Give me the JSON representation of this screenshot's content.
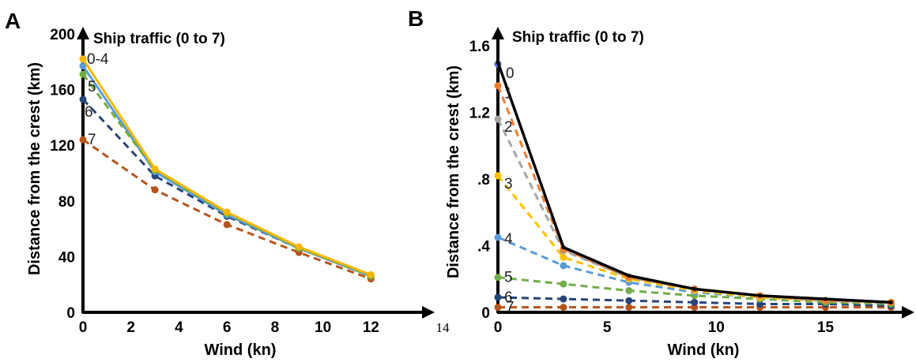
{
  "chart_data": [
    {
      "panel": "A",
      "type": "line",
      "legend_title": "Ship traffic (0 to 7)",
      "xlabel": "Wind (kn)",
      "ylabel": "Distance from the crest (km)",
      "xlim": [
        0,
        14
      ],
      "ylim": [
        0,
        200
      ],
      "xticks": [
        0,
        2,
        4,
        6,
        8,
        10,
        12
      ],
      "xtick_labels": [
        "0",
        "2",
        "4",
        "6",
        "8",
        "10",
        "12"
      ],
      "extra_tick_label": "14",
      "yticks": [
        0,
        40,
        80,
        120,
        160,
        200
      ],
      "ytick_labels": [
        "0",
        "40",
        "80",
        "120",
        "160",
        "200"
      ],
      "series": [
        {
          "name": "0-4",
          "color": "#f5b800",
          "dash": false,
          "x": [
            0,
            3,
            6,
            9,
            12
          ],
          "y": [
            182,
            103,
            72,
            47,
            27
          ]
        },
        {
          "name": "5",
          "color": "#70ad47",
          "dash": true,
          "x": [
            0,
            3,
            6,
            9,
            12
          ],
          "y": [
            171,
            102,
            71,
            46,
            26
          ]
        },
        {
          "name": "",
          "color": "#5b9bd5",
          "dash": false,
          "x": [
            0,
            3,
            6,
            9,
            12
          ],
          "y": [
            177,
            101,
            70,
            46,
            26
          ]
        },
        {
          "name": "6",
          "color": "#264478",
          "dash": true,
          "x": [
            0,
            3,
            6,
            9,
            12
          ],
          "y": [
            153,
            98,
            69,
            46,
            26
          ]
        },
        {
          "name": "7",
          "color": "#b5541c",
          "dash": true,
          "x": [
            0,
            3,
            6,
            9,
            12
          ],
          "y": [
            124,
            88,
            63,
            43,
            24
          ]
        }
      ]
    },
    {
      "panel": "B",
      "type": "line",
      "legend_title": "Ship traffic (0 to 7)",
      "xlabel": "Wind (kn)",
      "ylabel": "Distance from the crest (km)",
      "xlim": [
        0,
        19
      ],
      "ylim": [
        0,
        1.6
      ],
      "xticks": [
        0,
        5,
        10,
        15
      ],
      "xtick_labels": [
        "0",
        "5",
        "10",
        "15"
      ],
      "yticks": [
        0,
        0.4,
        0.8,
        1.2,
        1.6
      ],
      "ytick_labels": [
        "0",
        ".4",
        ".8",
        "1.2",
        "1.6"
      ],
      "series": [
        {
          "name": "0",
          "color": "#000000",
          "dash": false,
          "x": [
            0,
            3,
            6,
            9,
            12,
            15,
            18
          ],
          "y": [
            1.5,
            0.39,
            0.22,
            0.14,
            0.1,
            0.08,
            0.06
          ]
        },
        {
          "name": "",
          "color": "#4472c4",
          "dash": false,
          "x": [
            0
          ],
          "y": [
            1.49
          ]
        },
        {
          "name": "1",
          "color": "#ed7d31",
          "dash": true,
          "x": [
            0,
            3,
            6,
            9,
            12,
            15,
            18
          ],
          "y": [
            1.36,
            0.38,
            0.21,
            0.14,
            0.1,
            0.07,
            0.06
          ]
        },
        {
          "name": "2",
          "color": "#a5a5a5",
          "dash": true,
          "x": [
            0,
            3,
            6,
            9,
            12,
            15,
            18
          ],
          "y": [
            1.16,
            0.37,
            0.21,
            0.14,
            0.1,
            0.07,
            0.06
          ]
        },
        {
          "name": "3",
          "color": "#ffc000",
          "dash": true,
          "x": [
            0,
            3,
            6,
            9,
            12,
            15,
            18
          ],
          "y": [
            0.82,
            0.33,
            0.2,
            0.13,
            0.09,
            0.07,
            0.06
          ]
        },
        {
          "name": "4",
          "color": "#5b9bd5",
          "dash": true,
          "x": [
            0,
            3,
            6,
            9,
            12,
            15,
            18
          ],
          "y": [
            0.45,
            0.28,
            0.18,
            0.12,
            0.09,
            0.07,
            0.06
          ]
        },
        {
          "name": "5",
          "color": "#70ad47",
          "dash": true,
          "x": [
            0,
            3,
            6,
            9,
            12,
            15,
            18
          ],
          "y": [
            0.21,
            0.17,
            0.13,
            0.1,
            0.08,
            0.06,
            0.05
          ]
        },
        {
          "name": "6",
          "color": "#264478",
          "dash": true,
          "x": [
            0,
            3,
            6,
            9,
            12,
            15,
            18
          ],
          "y": [
            0.09,
            0.08,
            0.07,
            0.06,
            0.05,
            0.05,
            0.04
          ]
        },
        {
          "name": "7",
          "color": "#b5541c",
          "dash": true,
          "x": [
            0,
            3,
            6,
            9,
            12,
            15,
            18
          ],
          "y": [
            0.03,
            0.03,
            0.03,
            0.03,
            0.03,
            0.03,
            0.03
          ]
        }
      ]
    }
  ]
}
